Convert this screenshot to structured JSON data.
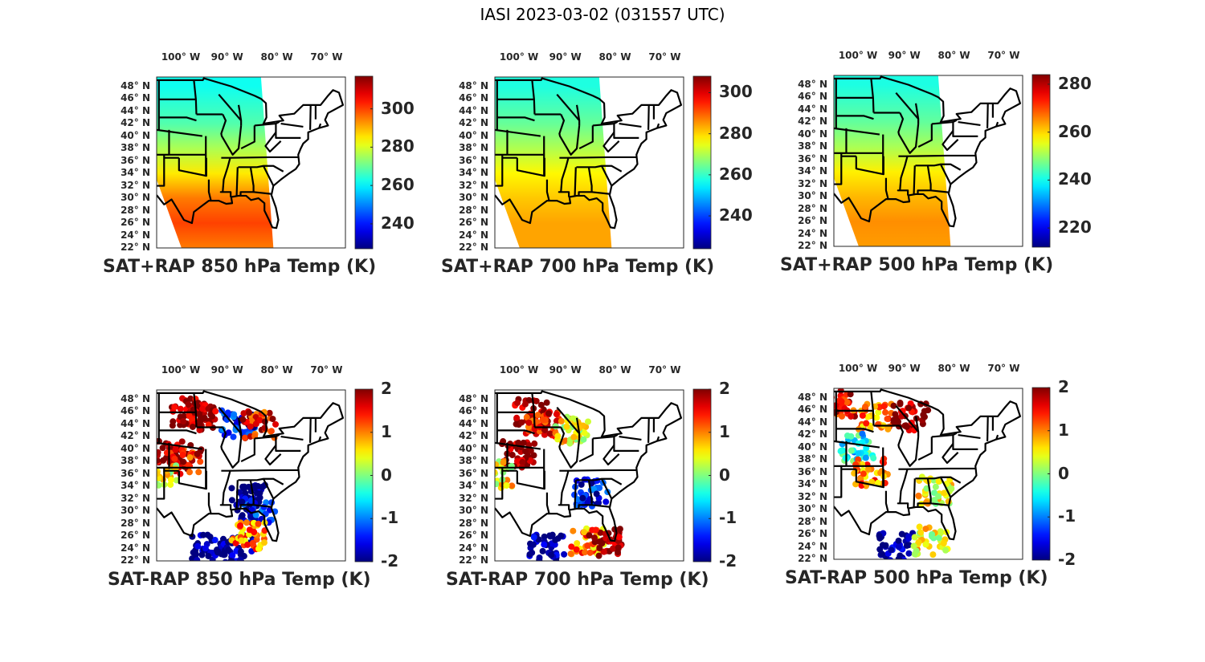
{
  "figure_title": "IASI 2023-03-02 (031557 UTC)",
  "chart_data": [
    {
      "type": "heatmap",
      "title": "SAT+RAP 850 hPa Temp (K)",
      "variable": "temperature",
      "units": "K",
      "colormap": "jet",
      "clim": [
        227,
        317
      ],
      "colorbar_ticks": [
        240,
        260,
        280,
        300
      ],
      "colorbar_tick_labels": [
        "240",
        "260",
        "280",
        "300"
      ],
      "lon_ticks": [
        "100° W",
        "90° W",
        "80° W",
        "70° W"
      ],
      "lat_ticks": [
        "48° N",
        "46° N",
        "44° N",
        "42° N",
        "40° N",
        "38° N",
        "36° N",
        "34° N",
        "32° N",
        "30° N",
        "28° N",
        "26° N",
        "24° N",
        "22° N"
      ],
      "field_description": "north ~262 K (cyan), central ~278 K (green-yellow), south ~292-302 K (orange-red)",
      "lat_gradient": [
        {
          "lat": 48,
          "value": 262
        },
        {
          "lat": 42,
          "value": 268
        },
        {
          "lat": 38,
          "value": 276
        },
        {
          "lat": 34,
          "value": 285
        },
        {
          "lat": 30,
          "value": 295
        },
        {
          "lat": 26,
          "value": 300
        },
        {
          "lat": 22,
          "value": 295
        }
      ]
    },
    {
      "type": "heatmap",
      "title": "SAT+RAP 700 hPa Temp (K)",
      "variable": "temperature",
      "units": "K",
      "colormap": "jet",
      "clim": [
        224,
        308
      ],
      "colorbar_ticks": [
        240,
        260,
        280,
        300
      ],
      "colorbar_tick_labels": [
        "240",
        "260",
        "280",
        "300"
      ],
      "lon_ticks": [
        "100° W",
        "90° W",
        "80° W",
        "70° W"
      ],
      "lat_ticks": [
        "48° N",
        "46° N",
        "44° N",
        "42° N",
        "40° N",
        "38° N",
        "36° N",
        "34° N",
        "32° N",
        "30° N",
        "28° N",
        "26° N",
        "24° N",
        "22° N"
      ],
      "field_description": "north ~258 K, south ~282-285 K",
      "lat_gradient": [
        {
          "lat": 48,
          "value": 258
        },
        {
          "lat": 42,
          "value": 264
        },
        {
          "lat": 38,
          "value": 270
        },
        {
          "lat": 34,
          "value": 277
        },
        {
          "lat": 30,
          "value": 281
        },
        {
          "lat": 26,
          "value": 284
        },
        {
          "lat": 22,
          "value": 284
        }
      ]
    },
    {
      "type": "heatmap",
      "title": "SAT+RAP 500 hPa Temp (K)",
      "variable": "temperature",
      "units": "K",
      "colormap": "jet",
      "clim": [
        212,
        284
      ],
      "colorbar_ticks": [
        220,
        240,
        260,
        280
      ],
      "colorbar_tick_labels": [
        "220",
        "240",
        "260",
        "280"
      ],
      "lon_ticks": [
        "100° W",
        "90° W",
        "80° W",
        "70° W"
      ],
      "lat_ticks": [
        "48° N",
        "46° N",
        "44° N",
        "42° N",
        "40° N",
        "38° N",
        "36° N",
        "34° N",
        "32° N",
        "30° N",
        "28° N",
        "26° N",
        "24° N",
        "22° N"
      ],
      "field_description": "north ~242 K, south ~265 K",
      "lat_gradient": [
        {
          "lat": 48,
          "value": 241
        },
        {
          "lat": 42,
          "value": 246
        },
        {
          "lat": 38,
          "value": 251
        },
        {
          "lat": 34,
          "value": 258
        },
        {
          "lat": 30,
          "value": 262
        },
        {
          "lat": 26,
          "value": 265
        },
        {
          "lat": 22,
          "value": 264
        }
      ]
    },
    {
      "type": "scatter",
      "title": "SAT-RAP 850 hPa Temp (K)",
      "variable": "temperature difference",
      "units": "K",
      "colormap": "jet",
      "clim": [
        -2,
        2
      ],
      "colorbar_ticks": [
        -2,
        -1,
        0,
        1,
        2
      ],
      "colorbar_tick_labels": [
        "-2",
        "-1",
        "0",
        "1",
        "2"
      ],
      "lon_ticks": [
        "100° W",
        "90° W",
        "80° W",
        "70° W"
      ],
      "lat_ticks": [
        "48° N",
        "46° N",
        "44° N",
        "42° N",
        "40° N",
        "38° N",
        "36° N",
        "34° N",
        "32° N",
        "30° N",
        "28° N",
        "26° N",
        "24° N",
        "22° N"
      ],
      "field_description": "strong positive (+2) over northern plains, strong negative (-2) over Gulf and southeast",
      "regions": [
        {
          "lon": -98,
          "lat": 46,
          "value": 2
        },
        {
          "lon": -96,
          "lat": 45,
          "value": 2
        },
        {
          "lon": -101,
          "lat": 39,
          "value": 2
        },
        {
          "lon": -99,
          "lat": 38,
          "value": 1.5
        },
        {
          "lon": -104,
          "lat": 36,
          "value": 0.5
        },
        {
          "lon": -88,
          "lat": 44,
          "value": -1.5
        },
        {
          "lon": -84,
          "lat": 44,
          "value": 1.5
        },
        {
          "lon": -86,
          "lat": 32,
          "value": -2
        },
        {
          "lon": -84,
          "lat": 30,
          "value": -1.5
        },
        {
          "lon": -94,
          "lat": 24,
          "value": -2
        },
        {
          "lon": -88,
          "lat": 24,
          "value": -2
        },
        {
          "lon": -86,
          "lat": 26,
          "value": 1
        }
      ]
    },
    {
      "type": "scatter",
      "title": "SAT-RAP 700 hPa Temp (K)",
      "variable": "temperature difference",
      "units": "K",
      "colormap": "jet",
      "clim": [
        -2,
        2
      ],
      "colorbar_ticks": [
        -2,
        -1,
        0,
        1,
        2
      ],
      "colorbar_tick_labels": [
        "-2",
        "-1",
        "0",
        "1",
        "2"
      ],
      "lon_ticks": [
        "100° W",
        "90° W",
        "80° W",
        "70° W"
      ],
      "lat_ticks": [
        "48° N",
        "46° N",
        "44° N",
        "42° N",
        "40° N",
        "38° N",
        "36° N",
        "34° N",
        "32° N",
        "30° N",
        "28° N",
        "26° N",
        "24° N",
        "22° N"
      ],
      "field_description": "positive over northern plains, negative over Gulf with positive band near Florida",
      "regions": [
        {
          "lon": -97,
          "lat": 46,
          "value": 2
        },
        {
          "lon": -95,
          "lat": 44,
          "value": 1.5
        },
        {
          "lon": -100,
          "lat": 39,
          "value": 2
        },
        {
          "lon": -104,
          "lat": 36,
          "value": 0.5
        },
        {
          "lon": -89,
          "lat": 43,
          "value": 0.5
        },
        {
          "lon": -85,
          "lat": 33,
          "value": -1.5
        },
        {
          "lon": -94,
          "lat": 24,
          "value": -2
        },
        {
          "lon": -86,
          "lat": 25,
          "value": 1
        },
        {
          "lon": -82,
          "lat": 25,
          "value": 2
        }
      ]
    },
    {
      "type": "scatter",
      "title": "SAT-RAP 500 hPa Temp (K)",
      "variable": "temperature difference",
      "units": "K",
      "colormap": "jet",
      "clim": [
        -2,
        2
      ],
      "colorbar_ticks": [
        -2,
        -1,
        0,
        1,
        2
      ],
      "colorbar_tick_labels": [
        "-2",
        "-1",
        "0",
        "1",
        "2"
      ],
      "lon_ticks": [
        "100° W",
        "90° W",
        "80° W",
        "70° W"
      ],
      "lat_ticks": [
        "48° N",
        "46° N",
        "44° N",
        "42° N",
        "40° N",
        "38° N",
        "36° N",
        "34° N",
        "32° N",
        "30° N",
        "28° N",
        "26° N",
        "24° N",
        "22° N"
      ],
      "field_description": "mixed positive/negative over plains, strong positive over Wisconsin, negative over Gulf",
      "regions": [
        {
          "lon": -103,
          "lat": 47,
          "value": 1.5
        },
        {
          "lon": -96,
          "lat": 45,
          "value": 1
        },
        {
          "lon": -89,
          "lat": 45,
          "value": 2
        },
        {
          "lon": -100,
          "lat": 40,
          "value": -0.5
        },
        {
          "lon": -97,
          "lat": 36,
          "value": 1
        },
        {
          "lon": -84,
          "lat": 33,
          "value": 0.5
        },
        {
          "lon": -92,
          "lat": 24,
          "value": -2
        },
        {
          "lon": -85,
          "lat": 25,
          "value": 0.5
        }
      ]
    }
  ]
}
